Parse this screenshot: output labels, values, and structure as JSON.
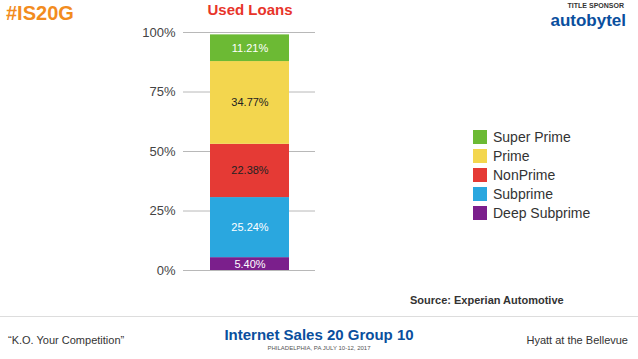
{
  "chart_data": {
    "type": "bar",
    "title": "Used Loans",
    "categories": [
      null
    ],
    "series": [
      {
        "name": "Deep Subprime",
        "color": "#7b1f8c",
        "values": [
          5.4
        ],
        "value_labels": [
          "5.40%"
        ]
      },
      {
        "name": "Subprime",
        "color": "#2aa7df",
        "values": [
          25.24
        ],
        "value_labels": [
          "25.24%"
        ]
      },
      {
        "name": "NonPrime",
        "color": "#e53a35",
        "values": [
          22.38
        ],
        "value_labels": [
          "22.38%"
        ]
      },
      {
        "name": "Prime",
        "color": "#f3d64e",
        "values": [
          34.77
        ],
        "value_labels": [
          "34.77%"
        ]
      },
      {
        "name": "Super Prime",
        "color": "#6cba34",
        "values": [
          11.21
        ],
        "value_labels": [
          "11.21%"
        ]
      }
    ],
    "stacked": true,
    "ylim": [
      0,
      100
    ],
    "yticks": [
      {
        "value": 0,
        "label": "0%"
      },
      {
        "value": 25,
        "label": "25%"
      },
      {
        "value": 50,
        "label": "50%"
      },
      {
        "value": 75,
        "label": "75%"
      },
      {
        "value": 100,
        "label": "100%"
      }
    ],
    "grid": true,
    "legend": "right",
    "data_labels": true,
    "tick_labels": "y"
  },
  "slide": {
    "hashtag": "#IS20G",
    "sponsor_label": "TITLE SPONSOR",
    "sponsor": "autobytel",
    "source": "Source: Experian Automotive",
    "tagline": "“K.O. Your Competition”",
    "event": "Internet Sales 20 Group 10",
    "event_place": "PHILADELPHIA, PA JULY 10-12, 2017",
    "venue": "Hyatt at the Bellevue"
  }
}
